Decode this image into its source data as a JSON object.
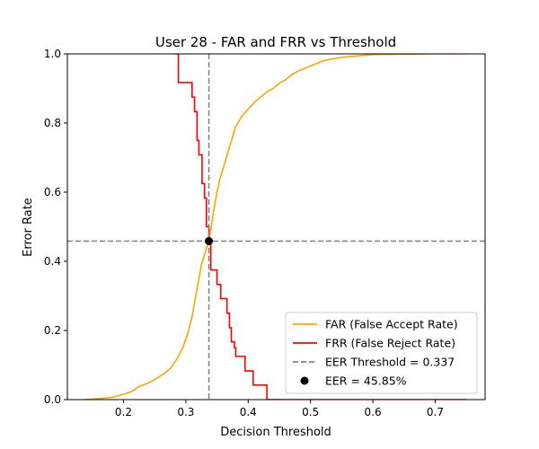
{
  "chart_data": {
    "type": "line",
    "title": "User 28 - FAR and FRR vs Threshold",
    "xlabel": "Decision Threshold",
    "ylabel": "Error Rate",
    "xlim": [
      0.11,
      0.78
    ],
    "ylim": [
      0.0,
      1.0
    ],
    "xticks": [
      "0.2",
      "0.3",
      "0.4",
      "0.5",
      "0.6",
      "0.7"
    ],
    "yticks": [
      "0.0",
      "0.2",
      "0.4",
      "0.6",
      "0.8",
      "1.0"
    ],
    "grid": false,
    "legend_position": "lower-right",
    "series": [
      {
        "name": "FAR (False Accept Rate)",
        "color": "#ffa500",
        "x": [
          0.137,
          0.16,
          0.18,
          0.2,
          0.215,
          0.225,
          0.24,
          0.25,
          0.265,
          0.275,
          0.285,
          0.295,
          0.303,
          0.31,
          0.315,
          0.32,
          0.325,
          0.33,
          0.337,
          0.34,
          0.345,
          0.35,
          0.355,
          0.36,
          0.365,
          0.37,
          0.375,
          0.38,
          0.39,
          0.4,
          0.41,
          0.42,
          0.43,
          0.44,
          0.45,
          0.46,
          0.47,
          0.48,
          0.5,
          0.52,
          0.55,
          0.58,
          0.6,
          0.65,
          0.7,
          0.75
        ],
        "y": [
          0.0,
          0.003,
          0.006,
          0.015,
          0.025,
          0.038,
          0.048,
          0.058,
          0.075,
          0.09,
          0.115,
          0.15,
          0.19,
          0.24,
          0.29,
          0.34,
          0.39,
          0.42,
          0.458,
          0.49,
          0.55,
          0.6,
          0.64,
          0.67,
          0.7,
          0.73,
          0.76,
          0.79,
          0.82,
          0.84,
          0.86,
          0.875,
          0.89,
          0.9,
          0.915,
          0.925,
          0.94,
          0.95,
          0.965,
          0.98,
          0.99,
          0.995,
          0.998,
          0.999,
          1.0,
          1.0
        ]
      },
      {
        "name": "FRR (False Reject Rate)",
        "color": "#ff0000",
        "x": [
          0.283,
          0.288,
          0.288,
          0.31,
          0.31,
          0.314,
          0.314,
          0.318,
          0.318,
          0.321,
          0.321,
          0.326,
          0.326,
          0.33,
          0.33,
          0.333,
          0.333,
          0.337,
          0.337,
          0.34,
          0.34,
          0.35,
          0.35,
          0.356,
          0.356,
          0.366,
          0.366,
          0.37,
          0.37,
          0.373,
          0.373,
          0.378,
          0.378,
          0.38,
          0.38,
          0.395,
          0.395,
          0.408,
          0.408,
          0.43,
          0.43,
          0.436,
          0.436,
          0.75
        ],
        "y": [
          1.0,
          1.0,
          0.917,
          0.917,
          0.875,
          0.875,
          0.833,
          0.833,
          0.75,
          0.75,
          0.708,
          0.708,
          0.625,
          0.625,
          0.583,
          0.583,
          0.5,
          0.5,
          0.458,
          0.458,
          0.375,
          0.375,
          0.333,
          0.333,
          0.292,
          0.292,
          0.25,
          0.25,
          0.208,
          0.208,
          0.167,
          0.167,
          0.15,
          0.15,
          0.125,
          0.125,
          0.083,
          0.083,
          0.042,
          0.042,
          0.0,
          0.0,
          0.0,
          0.0
        ]
      }
    ],
    "eer": {
      "threshold_label": "EER Threshold = 0.337",
      "threshold": 0.337,
      "rate": 0.4585,
      "point_label": "EER = 45.85%",
      "line_color": "#808080",
      "point_color": "#000000"
    }
  }
}
